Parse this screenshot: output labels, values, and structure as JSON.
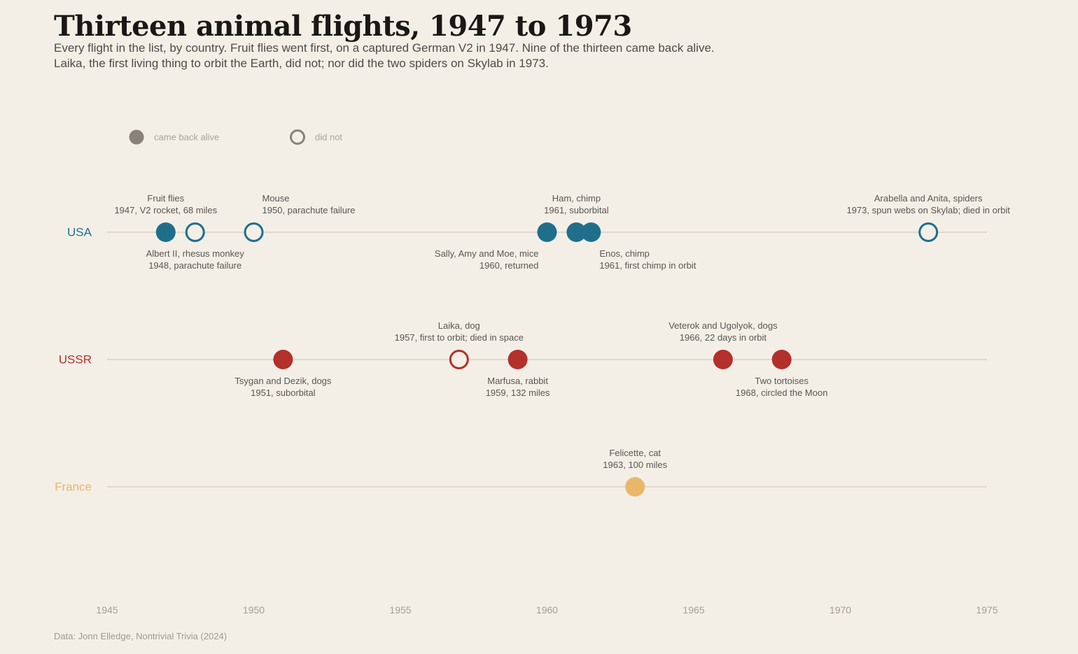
{
  "header": {
    "title": "Thirteen animal flights, 1947 to 1973",
    "subtitle_lines": [
      "Every flight in the list, by country. Fruit flies went first, on a captured German V2 in 1947. Nine of the thirteen came back alive.",
      "Laika, the first living thing to orbit the Earth, did not; nor did the two spiders on Skylab in 1973."
    ]
  },
  "footer": {
    "source": "Data: Jonn Elledge, Nontrivial Trivia (2024)"
  },
  "chart_data": {
    "type": "scatter",
    "title": "Thirteen animal flights, 1947 to 1973",
    "xlabel": "",
    "ylabel": "",
    "xlim": [
      1945,
      1975
    ],
    "x_ticks": [
      1945,
      1950,
      1955,
      1960,
      1965,
      1970,
      1975
    ],
    "grid": false,
    "legend": {
      "placement": "top-left",
      "entries": [
        {
          "label": "came back alive",
          "style": "filled"
        },
        {
          "label": "did not",
          "style": "hollow"
        }
      ]
    },
    "categories": [
      "USA",
      "USSR",
      "France"
    ],
    "colors": {
      "USA": "#1f6f8b",
      "USSR": "#b3302b",
      "France": "#e8b76c",
      "legend": "#8a8278",
      "axis_line": "#e0d9cb",
      "label_text": "#5b5650",
      "tick_text": "#a59e93"
    },
    "series": [
      {
        "name": "USA",
        "points": [
          {
            "x": 1947,
            "line1": "Fruit flies",
            "line2": "1947, V2 rocket, 68 miles",
            "survived": true,
            "label_pos": "above",
            "align": "middle"
          },
          {
            "x": 1948,
            "line1": "Albert II, rhesus monkey",
            "line2": "1948, parachute failure",
            "survived": false,
            "label_pos": "below",
            "align": "middle"
          },
          {
            "x": 1950,
            "line1": "Mouse",
            "line2": "1950, parachute failure",
            "survived": false,
            "label_pos": "above",
            "align": "start"
          },
          {
            "x": 1960,
            "line1": "Sally, Amy and Moe, mice",
            "line2": "1960, returned",
            "survived": true,
            "label_pos": "below",
            "align": "end"
          },
          {
            "x": 1961,
            "line1": "Ham, chimp",
            "line2": "1961, suborbital",
            "survived": true,
            "label_pos": "above",
            "align": "middle"
          },
          {
            "x": 1961.5,
            "line1": "Enos, chimp",
            "line2": "1961, first chimp in orbit",
            "survived": true,
            "label_pos": "below",
            "align": "start"
          },
          {
            "x": 1973,
            "line1": "Arabella and Anita, spiders",
            "line2": "1973, spun webs on Skylab; died in orbit",
            "survived": false,
            "label_pos": "above",
            "align": "middle"
          }
        ]
      },
      {
        "name": "USSR",
        "points": [
          {
            "x": 1951,
            "line1": "Tsygan and Dezik, dogs",
            "line2": "1951, suborbital",
            "survived": true,
            "label_pos": "below",
            "align": "middle"
          },
          {
            "x": 1957,
            "line1": "Laika, dog",
            "line2": "1957, first to orbit; died in space",
            "survived": false,
            "label_pos": "above",
            "align": "middle"
          },
          {
            "x": 1959,
            "line1": "Marfusa, rabbit",
            "line2": "1959, 132 miles",
            "survived": true,
            "label_pos": "below",
            "align": "middle"
          },
          {
            "x": 1966,
            "line1": "Veterok and Ugolyok, dogs",
            "line2": "1966, 22 days in orbit",
            "survived": true,
            "label_pos": "above",
            "align": "middle"
          },
          {
            "x": 1968,
            "line1": "Two tortoises",
            "line2": "1968, circled the Moon",
            "survived": true,
            "label_pos": "below",
            "align": "middle"
          }
        ]
      },
      {
        "name": "France",
        "points": [
          {
            "x": 1963,
            "line1": "Felicette, cat",
            "line2": "1963, 100 miles",
            "survived": true,
            "label_pos": "above",
            "align": "middle"
          }
        ]
      }
    ]
  }
}
